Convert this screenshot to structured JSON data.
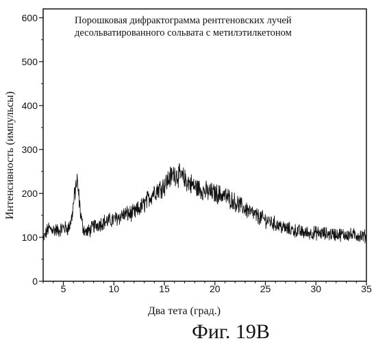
{
  "chart_data": {
    "type": "line",
    "title_lines": [
      "Порошковая дифрактограмма рентгеновских лучей",
      "десольватированного сольвата с метилэтилкетоном"
    ],
    "xlabel": "Два тета (град.)",
    "ylabel": "Интенсивность (импульсы)",
    "xlim": [
      3,
      35
    ],
    "ylim": [
      0,
      620
    ],
    "x_ticks": [
      5,
      10,
      15,
      20,
      25,
      30,
      35
    ],
    "y_ticks": [
      0,
      100,
      200,
      300,
      400,
      500,
      600
    ],
    "grid": false,
    "series": [
      {
        "x": [
          3,
          3.5,
          4,
          4.5,
          5,
          5.5,
          5.8,
          6,
          6.2,
          6.35,
          6.5,
          6.7,
          6.9,
          7.2,
          7.6,
          8,
          9,
          10,
          11,
          12,
          13,
          14,
          15,
          15.5,
          16,
          16.5,
          17,
          18,
          19,
          20,
          21,
          22,
          23,
          24,
          25,
          26,
          27,
          28,
          29,
          30,
          31,
          32,
          33,
          34,
          35
        ],
        "values": [
          95,
          120,
          118,
          115,
          122,
          120,
          140,
          175,
          210,
          230,
          200,
          155,
          125,
          112,
          115,
          125,
          135,
          140,
          152,
          155,
          175,
          205,
          218,
          235,
          245,
          240,
          232,
          215,
          205,
          200,
          195,
          180,
          165,
          150,
          140,
          130,
          120,
          115,
          110,
          110,
          108,
          107,
          106,
          105,
          102
        ]
      }
    ]
  },
  "figure_caption": "Фиг. 19B"
}
